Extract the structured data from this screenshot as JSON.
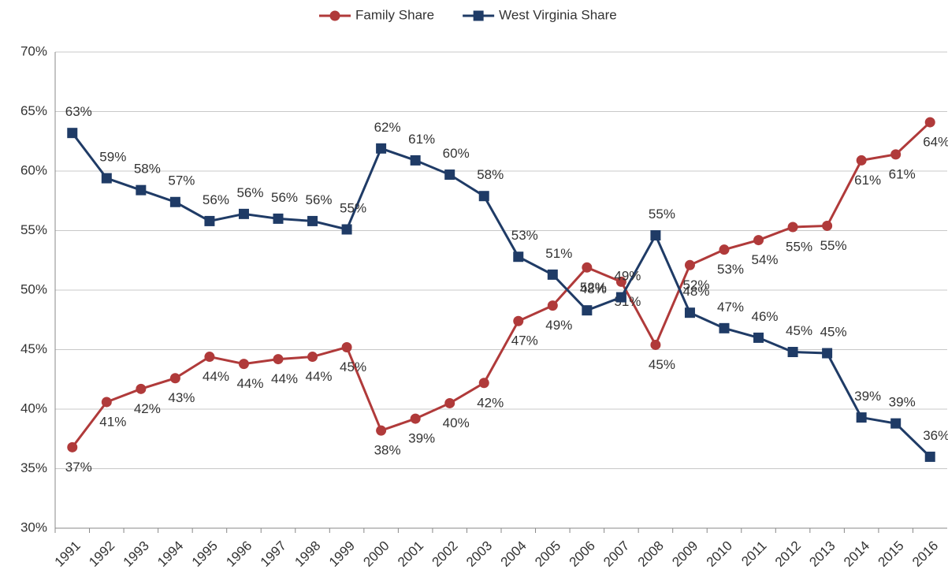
{
  "chart_data": {
    "type": "line",
    "categories": [
      "1991",
      "1992",
      "1993",
      "1994",
      "1995",
      "1996",
      "1997",
      "1998",
      "1999",
      "2000",
      "2001",
      "2002",
      "2003",
      "2004",
      "2005",
      "2006",
      "2007",
      "2008",
      "2009",
      "2010",
      "2011",
      "2012",
      "2013",
      "2014",
      "2015",
      "2016"
    ],
    "series": [
      {
        "name": "Family Share",
        "color": "#b03a3a",
        "marker": "circle",
        "values": [
          36.8,
          40.6,
          41.7,
          42.6,
          44.4,
          43.8,
          44.2,
          44.4,
          45.2,
          38.2,
          39.2,
          40.5,
          42.2,
          47.4,
          48.7,
          51.9,
          50.7,
          45.4,
          52.1,
          53.4,
          54.2,
          55.3,
          55.4,
          60.9,
          61.4,
          64.1
        ],
        "value_labels": [
          "37%",
          "41%",
          "42%",
          "43%",
          "44%",
          "44%",
          "44%",
          "44%",
          "45%",
          "38%",
          "39%",
          "40%",
          "42%",
          "47%",
          "49%",
          "52%",
          "51%",
          "45%",
          "52%",
          "53%",
          "54%",
          "55%",
          "55%",
          "61%",
          "61%",
          "64%"
        ]
      },
      {
        "name": "West Virginia Share",
        "color": "#1f3b66",
        "marker": "square",
        "values": [
          63.2,
          59.4,
          58.4,
          57.4,
          55.8,
          56.4,
          56.0,
          55.8,
          55.1,
          61.9,
          60.9,
          59.7,
          57.9,
          52.8,
          51.3,
          48.3,
          49.4,
          54.6,
          48.1,
          46.8,
          46.0,
          44.8,
          44.7,
          39.3,
          38.8,
          36.0
        ],
        "value_labels": [
          "63%",
          "59%",
          "58%",
          "57%",
          "56%",
          "56%",
          "56%",
          "56%",
          "55%",
          "62%",
          "61%",
          "60%",
          "58%",
          "53%",
          "51%",
          "48%",
          "49%",
          "55%",
          "48%",
          "47%",
          "46%",
          "45%",
          "45%",
          "39%",
          "39%",
          "36%"
        ]
      }
    ],
    "ylim": [
      30,
      70
    ],
    "yticks": [
      {
        "value": 30,
        "label": "30%"
      },
      {
        "value": 35,
        "label": "35%"
      },
      {
        "value": 40,
        "label": "40%"
      },
      {
        "value": 45,
        "label": "45%"
      },
      {
        "value": 50,
        "label": "50%"
      },
      {
        "value": 55,
        "label": "55%"
      },
      {
        "value": 60,
        "label": "60%"
      },
      {
        "value": 65,
        "label": "65%"
      },
      {
        "value": 70,
        "label": "70%"
      }
    ],
    "grid": true,
    "legend": "top"
  }
}
